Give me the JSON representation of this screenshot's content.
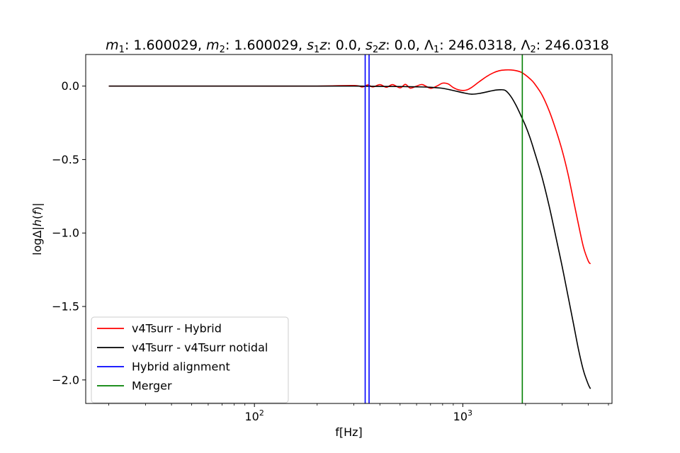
{
  "chart_data": {
    "type": "line",
    "title_parts": [
      {
        "text": "m",
        "italic": true
      },
      {
        "text": "1",
        "sub": true
      },
      {
        "text": ": 1.600029, "
      },
      {
        "text": "m",
        "italic": true
      },
      {
        "text": "2",
        "sub": true
      },
      {
        "text": ": 1.600029, "
      },
      {
        "text": "s",
        "italic": true
      },
      {
        "text": "1",
        "sub": true
      },
      {
        "text": "z",
        "italic": true
      },
      {
        "text": ": 0.0, "
      },
      {
        "text": "s",
        "italic": true
      },
      {
        "text": "2",
        "sub": true
      },
      {
        "text": "z",
        "italic": true
      },
      {
        "text": ": 0.0, "
      },
      {
        "text": "Λ"
      },
      {
        "text": "1",
        "sub": true
      },
      {
        "text": ": 246.0318, "
      },
      {
        "text": "Λ"
      },
      {
        "text": "2",
        "sub": true
      },
      {
        "text": ": 246.0318"
      }
    ],
    "xlabel": "f[Hz]",
    "ylabel_parts": [
      {
        "text": "log"
      },
      {
        "text": "Δ|"
      },
      {
        "text": "h",
        "italic": true
      },
      {
        "text": "("
      },
      {
        "text": "f",
        "italic": true
      },
      {
        "text": ")|"
      }
    ],
    "xscale": "log",
    "xlim": [
      15.5,
      5200
    ],
    "ylim": [
      -2.16,
      0.215
    ],
    "xticks": [
      {
        "value": 100,
        "base": "10",
        "exp": "2"
      },
      {
        "value": 1000,
        "base": "10",
        "exp": "3"
      }
    ],
    "yticks": [
      {
        "value": 0.0,
        "label": "0.0"
      },
      {
        "value": -0.5,
        "label": "−0.5"
      },
      {
        "value": -1.0,
        "label": "−1.0"
      },
      {
        "value": -1.5,
        "label": "−1.5"
      },
      {
        "value": -2.0,
        "label": "−2.0"
      }
    ],
    "grid": false,
    "legend_position": "lower-left",
    "series": [
      {
        "name": "v4Tsurr - Hybrid",
        "color": "#ff0000",
        "x": [
          20,
          50,
          100,
          200,
          300,
          330,
          350,
          370,
          400,
          430,
          460,
          500,
          530,
          560,
          600,
          640,
          700,
          750,
          800,
          850,
          900,
          950,
          1000,
          1050,
          1100,
          1200,
          1300,
          1400,
          1500,
          1600,
          1700,
          1800,
          1900,
          2000,
          2100,
          2200,
          2400,
          2600,
          2800,
          3000,
          3200,
          3400,
          3600,
          3800,
          4000,
          4100
        ],
        "y": [
          0.0,
          0.0,
          0.0,
          0.0,
          0.004,
          -0.006,
          0.008,
          -0.006,
          0.01,
          -0.008,
          0.01,
          -0.012,
          0.012,
          -0.014,
          0.0,
          0.01,
          -0.015,
          0.0,
          0.02,
          0.015,
          -0.01,
          -0.025,
          -0.03,
          -0.025,
          -0.01,
          0.03,
          0.065,
          0.09,
          0.105,
          0.11,
          0.11,
          0.105,
          0.095,
          0.075,
          0.05,
          0.02,
          -0.06,
          -0.17,
          -0.3,
          -0.44,
          -0.6,
          -0.78,
          -0.95,
          -1.1,
          -1.19,
          -1.21
        ]
      },
      {
        "name": "v4Tsurr - v4Tsurr notidal",
        "color": "#000000",
        "x": [
          20,
          50,
          100,
          200,
          300,
          400,
          500,
          600,
          700,
          800,
          900,
          1000,
          1100,
          1200,
          1300,
          1400,
          1500,
          1600,
          1700,
          1800,
          1900,
          2000,
          2100,
          2200,
          2400,
          2600,
          2800,
          3000,
          3200,
          3400,
          3600,
          3800,
          4000,
          4100
        ],
        "y": [
          0.0,
          0.0,
          0.0,
          0.0,
          0.0,
          -0.002,
          -0.003,
          -0.005,
          -0.008,
          -0.015,
          -0.03,
          -0.045,
          -0.055,
          -0.05,
          -0.04,
          -0.03,
          -0.025,
          -0.03,
          -0.07,
          -0.13,
          -0.2,
          -0.27,
          -0.35,
          -0.44,
          -0.62,
          -0.82,
          -1.03,
          -1.23,
          -1.43,
          -1.62,
          -1.8,
          -1.94,
          -2.03,
          -2.06
        ]
      }
    ],
    "vlines": [
      {
        "name": "Hybrid alignment",
        "x": 340,
        "color": "#0000ff",
        "legend": true
      },
      {
        "name": "",
        "x": 355,
        "color": "#0000ff",
        "legend": false
      },
      {
        "name": "Merger",
        "x": 1930,
        "color": "#008000",
        "legend": true
      }
    ]
  }
}
